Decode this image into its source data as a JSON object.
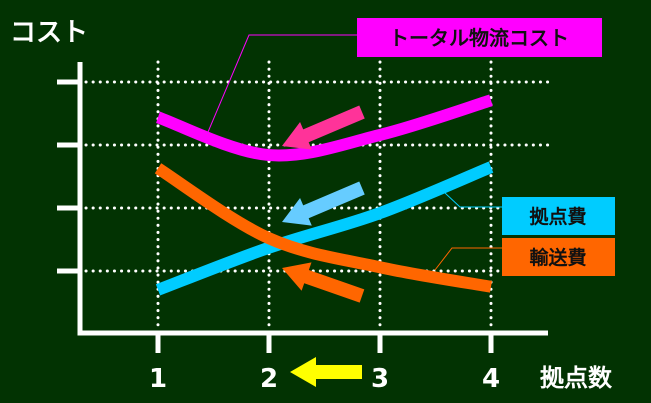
{
  "chart_data": {
    "type": "line",
    "title": "",
    "ylabel": "コスト",
    "xlabel": "拠点数",
    "categories": [
      "1",
      "2",
      "3",
      "4"
    ],
    "ylim": [
      0,
      4
    ],
    "grid": true,
    "series": [
      {
        "name": "トータル物流コスト",
        "values": [
          3.44,
          2.84,
          3.16,
          3.71
        ],
        "color": "#ff00ff"
      },
      {
        "name": "拠点費",
        "values": [
          0.7,
          1.37,
          1.92,
          2.65
        ],
        "color": "#00ccff"
      },
      {
        "name": "輸送費",
        "values": [
          2.63,
          1.52,
          1.06,
          0.75
        ],
        "color": "#ff6600"
      }
    ],
    "arrow_colors": {
      "total": "#ff3399",
      "base": "#66ccff",
      "transport": "#ff6600",
      "axis": "#ffff00"
    },
    "background": "#023302"
  }
}
